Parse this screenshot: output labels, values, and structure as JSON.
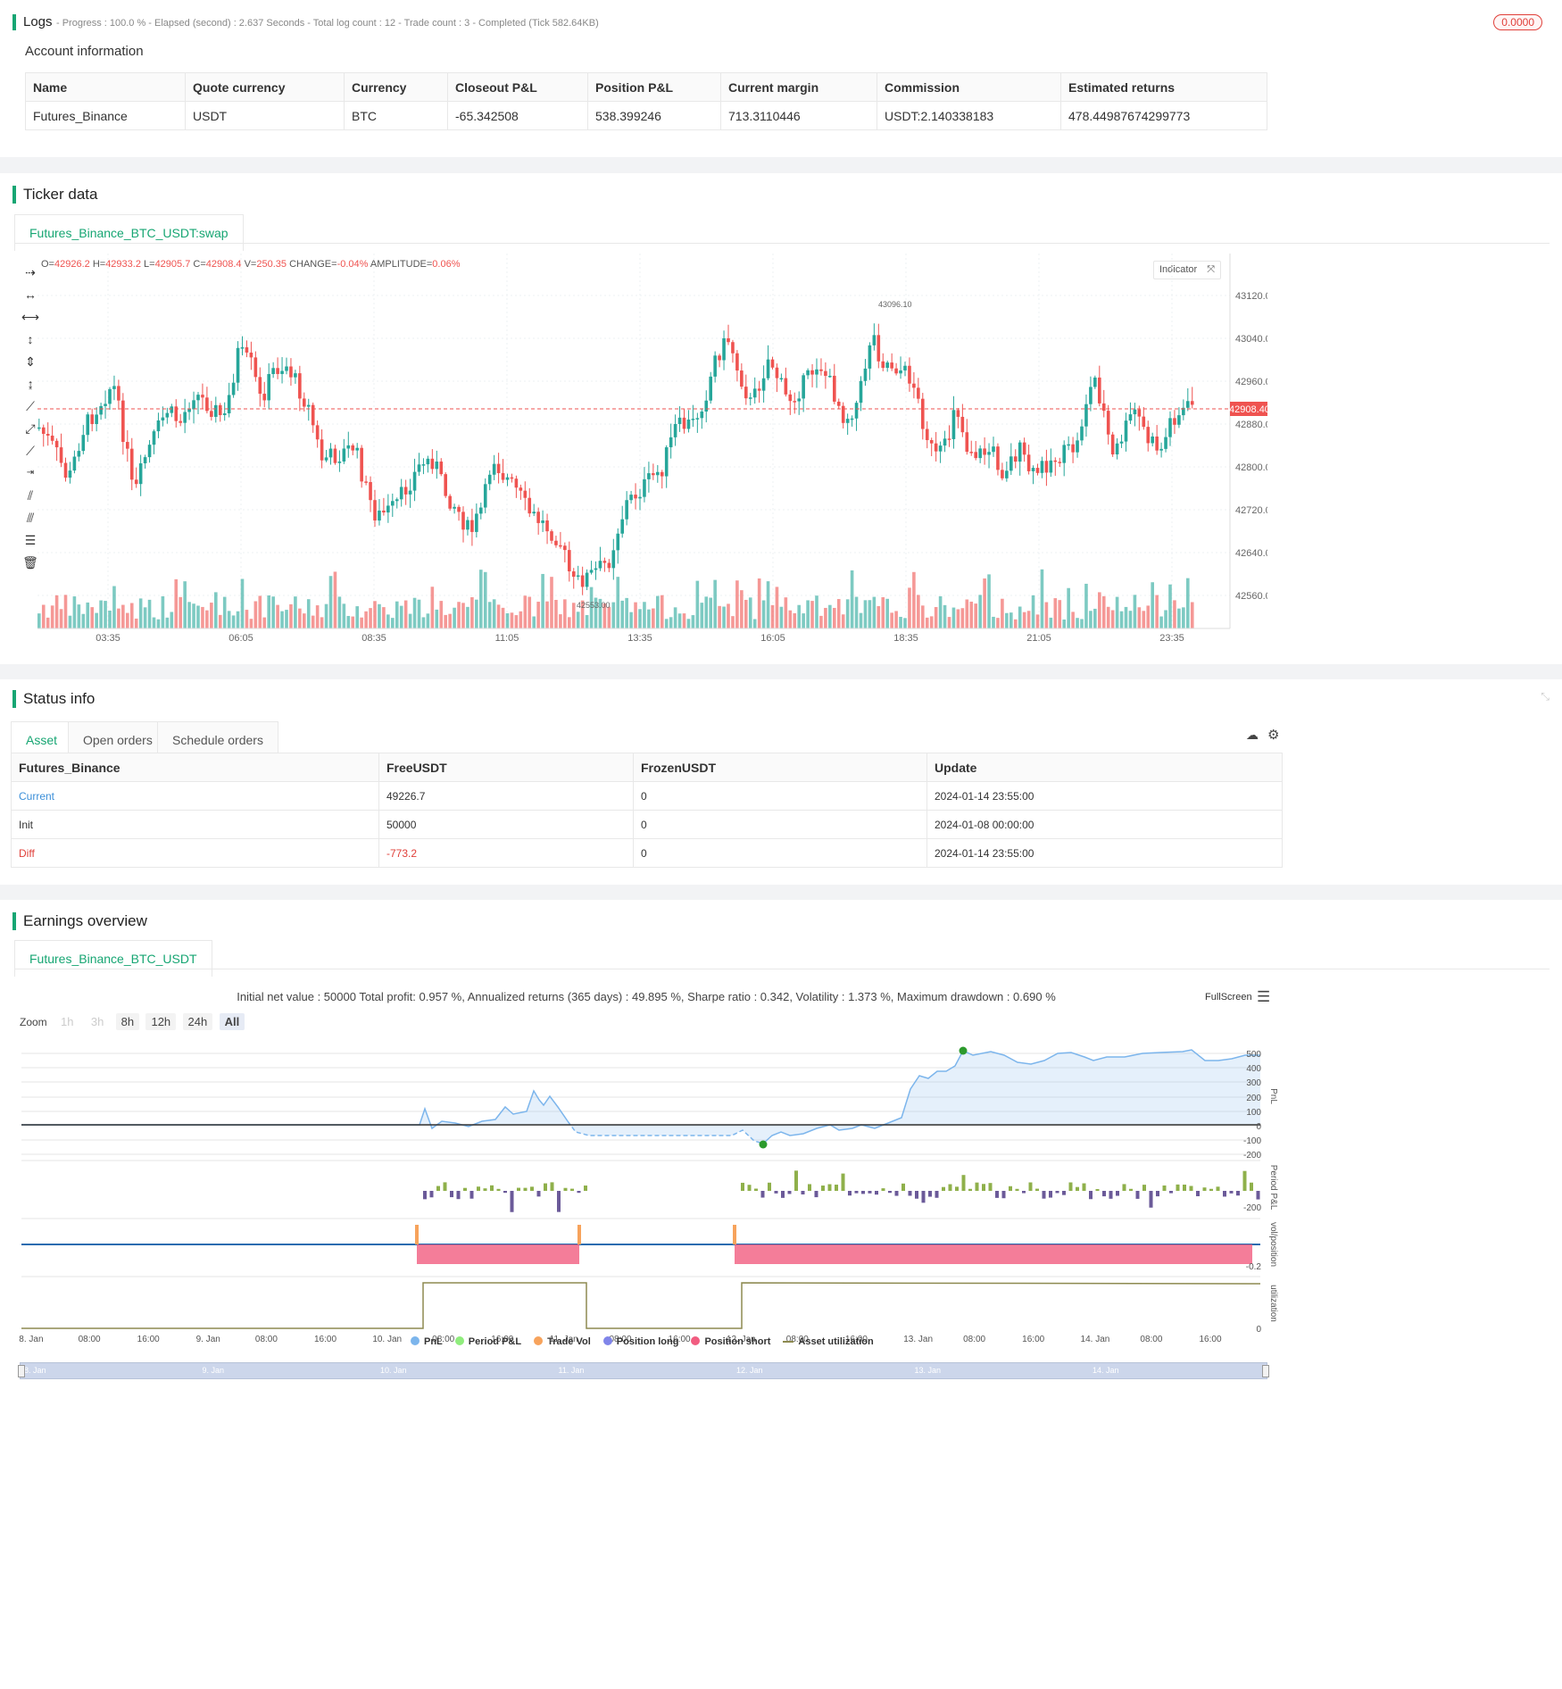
{
  "logs": {
    "title": "Logs",
    "summary": "- Progress : 100.0 % - Elapsed (second) : 2.637  Seconds - Total log count : 12 - Trade count : 3 - Completed (Tick 582.64KB)",
    "badge": "0.0000"
  },
  "account": {
    "title": "Account information",
    "headers": [
      "Name",
      "Quote currency",
      "Currency",
      "Closeout P&L",
      "Position P&L",
      "Current margin",
      "Commission",
      "Estimated returns"
    ],
    "row": [
      "Futures_Binance",
      "USDT",
      "BTC",
      "-65.342508",
      "538.399246",
      "713.3110446",
      "USDT:2.140338183",
      "478.44987674299773"
    ]
  },
  "ticker": {
    "title": "Ticker data",
    "tab": "Futures_Binance_BTC_USDT:swap",
    "ohlc": {
      "o_label": "O=",
      "o": "42926.2",
      "h_label": "H=",
      "h": "42933.2",
      "l_label": "L=",
      "l": "42905.7",
      "c_label": "C=",
      "c": "42908.4",
      "v_label": "V=",
      "v": "250.35",
      "change_label": "CHANGE=",
      "change": "-0.04%",
      "amp_label": "AMPLITUDE=",
      "amp": "0.06%"
    },
    "indicator_btn": "Indicator",
    "price_ticks": [
      "43120.00",
      "43040.00",
      "42960.00",
      "42880.00",
      "42800.00",
      "42720.00",
      "42640.00",
      "42560.00"
    ],
    "time_ticks": [
      "03:35",
      "06:05",
      "08:35",
      "11:05",
      "13:35",
      "16:05",
      "18:35",
      "21:05",
      "23:35"
    ],
    "last_price": "42908.40",
    "high_mark": "43096.10",
    "low_mark": "42553.00",
    "colors": {
      "up": "#26a69a",
      "down": "#ef5350"
    }
  },
  "status": {
    "title": "Status info",
    "tabs": [
      "Asset",
      "Open orders",
      "Schedule orders"
    ],
    "headers": [
      "Futures_Binance",
      "FreeUSDT",
      "FrozenUSDT",
      "Update"
    ],
    "rows": [
      [
        "Current",
        "49226.7",
        "0",
        "2024-01-14 23:55:00"
      ],
      [
        "Init",
        "50000",
        "0",
        "2024-01-08 00:00:00"
      ],
      [
        "Diff",
        "-773.2",
        "0",
        "2024-01-14 23:55:00"
      ]
    ]
  },
  "earnings": {
    "title": "Earnings overview",
    "tab": "Futures_Binance_BTC_USDT",
    "summary": "Initial net value : 50000 Total profit: 0.957 %, Annualized returns (365 days) : 49.895 %, Sharpe ratio : 0.342, Volatility : 1.373 %, Maximum drawdown : 0.690 %",
    "fullscreen": "FullScreen",
    "zoom_label": "Zoom",
    "zoom_buttons": [
      "1h",
      "3h",
      "8h",
      "12h",
      "24h",
      "All"
    ],
    "pnl_ticks": [
      "500",
      "400",
      "300",
      "200",
      "100",
      "0",
      "-100",
      "-200"
    ],
    "period_tick": "-200",
    "vol_tick": "-0.2",
    "util_tick": "0",
    "axis_labels": [
      "PnL",
      "Period P&L",
      "vol/position",
      "utilization"
    ],
    "x_ticks": [
      "8. Jan",
      "08:00",
      "16:00",
      "9. Jan",
      "08:00",
      "16:00",
      "10. Jan",
      "08:00",
      "16:00",
      "11. Jan",
      "08:00",
      "16:00",
      "12. Jan",
      "08:00",
      "16:00",
      "13. Jan",
      "08:00",
      "16:00",
      "14. Jan",
      "08:00",
      "16:00"
    ],
    "nav_ticks": [
      "8. Jan",
      "9. Jan",
      "10. Jan",
      "11. Jan",
      "12. Jan",
      "13. Jan",
      "14. Jan"
    ],
    "legend": [
      {
        "name": "PnL",
        "color": "#7cb5ec"
      },
      {
        "name": "Period P&L",
        "color": "#90ed7d"
      },
      {
        "name": "Trade Vol",
        "color": "#f7a35c"
      },
      {
        "name": "Position long",
        "color": "#8085e9"
      },
      {
        "name": "Position short",
        "color": "#f15c80"
      },
      {
        "name": "Asset utilization",
        "color": "#8d8a50"
      }
    ]
  }
}
